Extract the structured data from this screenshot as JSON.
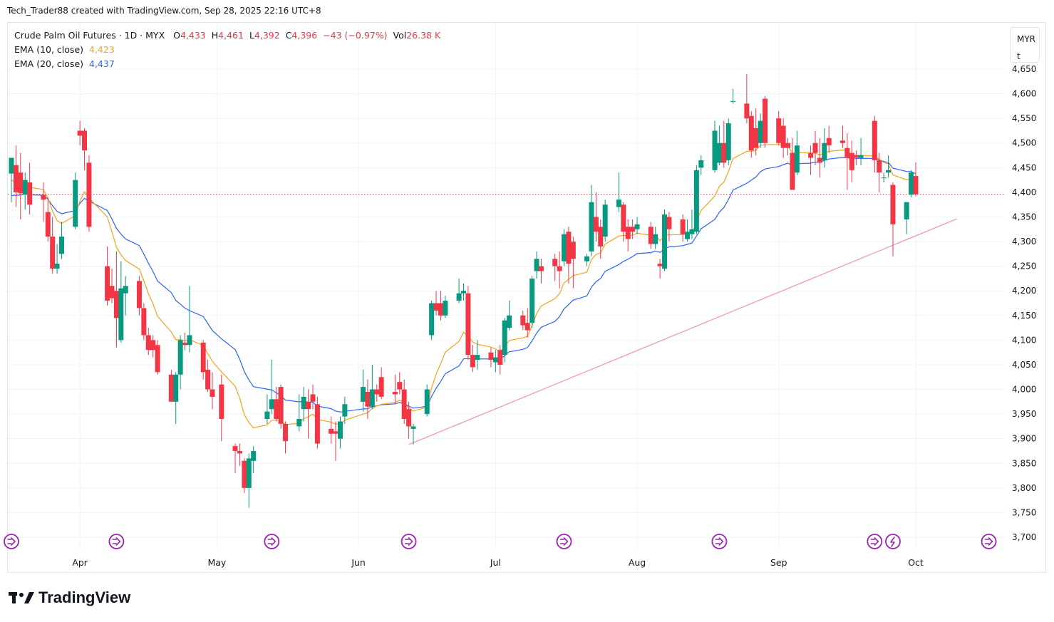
{
  "header": {
    "created_line": "Tech_Trader88 created with TradingView.com, Sep 28, 2025 22:16 UTC+8"
  },
  "legend": {
    "symbol": "Crude Palm Oil Futures · 1D · MYX",
    "open_label": "O",
    "open": "4,433",
    "high_label": "H",
    "high": "4,461",
    "low_label": "L",
    "low": "4,392",
    "close_label": "C",
    "close": "4,396",
    "change": "−43 (−0.97%)",
    "vol_label": "Vol",
    "vol": "26.38 K",
    "ema10_label": "EMA (10, close)",
    "ema10_value": "4,423",
    "ema20_label": "EMA (20, close)",
    "ema20_value": "4,437"
  },
  "currency_button": {
    "label": "MYR",
    "sub": "t"
  },
  "branding": {
    "logo_text": "TradingView"
  },
  "colors": {
    "up": "#089981",
    "down": "#f23645",
    "ema10": "#f7a21b",
    "ema20": "#2962ff",
    "trendline": "#f48fb1",
    "grid": "#f0f3fa",
    "event": "#9c27b0"
  },
  "chart_data": {
    "type": "candlestick",
    "title": "Crude Palm Oil Futures · 1D · MYX",
    "ylim": [
      3700,
      4650
    ],
    "y_ticks": [
      "4,650",
      "4,600",
      "4,550",
      "4,500",
      "4,450",
      "4,400",
      "4,350",
      "4,300",
      "4,250",
      "4,200",
      "4,150",
      "4,100",
      "4,050",
      "4,000",
      "3,950",
      "3,900",
      "3,850",
      "3,800",
      "3,750",
      "3,700"
    ],
    "x_ticks": [
      "Apr",
      "May",
      "Jun",
      "Jul",
      "Aug",
      "Sep",
      "Oct"
    ],
    "last_price_line": 4396,
    "trendline": {
      "from": [
        "2025-06-12",
        3888
      ],
      "to": [
        "2025-10-10",
        4346
      ]
    },
    "candles": [
      {
        "d": "2025-03-17",
        "o": 4438,
        "h": 4465,
        "l": 4380,
        "c": 4470
      },
      {
        "d": "2025-03-18",
        "o": 4455,
        "h": 4495,
        "l": 4370,
        "c": 4400
      },
      {
        "d": "2025-03-19",
        "o": 4440,
        "h": 4480,
        "l": 4345,
        "c": 4398
      },
      {
        "d": "2025-03-20",
        "o": 4395,
        "h": 4440,
        "l": 4365,
        "c": 4425
      },
      {
        "d": "2025-03-21",
        "o": 4420,
        "h": 4460,
        "l": 4355,
        "c": 4375
      },
      {
        "d": "2025-03-24",
        "o": 4395,
        "h": 4420,
        "l": 4340,
        "c": 4385
      },
      {
        "d": "2025-03-25",
        "o": 4360,
        "h": 4390,
        "l": 4300,
        "c": 4310
      },
      {
        "d": "2025-03-26",
        "o": 4310,
        "h": 4350,
        "l": 4235,
        "c": 4245
      },
      {
        "d": "2025-03-27",
        "o": 4245,
        "h": 4295,
        "l": 4235,
        "c": 4255
      },
      {
        "d": "2025-03-28",
        "o": 4275,
        "h": 4340,
        "l": 4265,
        "c": 4310
      },
      {
        "d": "2025-03-31",
        "o": 4330,
        "h": 4440,
        "l": 4325,
        "c": 4425
      },
      {
        "d": "2025-04-01",
        "o": 4525,
        "h": 4545,
        "l": 4495,
        "c": 4515
      },
      {
        "d": "2025-04-02",
        "o": 4525,
        "h": 4530,
        "l": 4445,
        "c": 4485
      },
      {
        "d": "2025-04-03",
        "o": 4460,
        "h": 4475,
        "l": 4320,
        "c": 4330
      },
      {
        "d": "2025-04-07",
        "o": 4250,
        "h": 4290,
        "l": 4170,
        "c": 4180
      },
      {
        "d": "2025-04-08",
        "o": 4210,
        "h": 4245,
        "l": 4175,
        "c": 4185
      },
      {
        "d": "2025-04-09",
        "o": 4200,
        "h": 4280,
        "l": 4085,
        "c": 4145
      },
      {
        "d": "2025-04-10",
        "o": 4100,
        "h": 4260,
        "l": 4095,
        "c": 4205
      },
      {
        "d": "2025-04-11",
        "o": 4195,
        "h": 4230,
        "l": 4150,
        "c": 4210
      },
      {
        "d": "2025-04-14",
        "o": 4220,
        "h": 4230,
        "l": 4150,
        "c": 4165
      },
      {
        "d": "2025-04-15",
        "o": 4165,
        "h": 4175,
        "l": 4100,
        "c": 4110
      },
      {
        "d": "2025-04-16",
        "o": 4110,
        "h": 4125,
        "l": 4070,
        "c": 4080
      },
      {
        "d": "2025-04-17",
        "o": 4100,
        "h": 4110,
        "l": 4065,
        "c": 4080
      },
      {
        "d": "2025-04-18",
        "o": 4090,
        "h": 4100,
        "l": 4030,
        "c": 4035
      },
      {
        "d": "2025-04-21",
        "o": 4030,
        "h": 4040,
        "l": 3975,
        "c": 3975
      },
      {
        "d": "2025-04-22",
        "o": 3975,
        "h": 4035,
        "l": 3930,
        "c": 4030
      },
      {
        "d": "2025-04-23",
        "o": 4030,
        "h": 4110,
        "l": 4000,
        "c": 4100
      },
      {
        "d": "2025-04-24",
        "o": 4095,
        "h": 4115,
        "l": 4080,
        "c": 4090
      },
      {
        "d": "2025-04-25",
        "o": 4090,
        "h": 4210,
        "l": 4075,
        "c": 4110
      },
      {
        "d": "2025-04-28",
        "o": 4095,
        "h": 4100,
        "l": 4020,
        "c": 4035
      },
      {
        "d": "2025-04-29",
        "o": 4040,
        "h": 4060,
        "l": 3995,
        "c": 4000
      },
      {
        "d": "2025-04-30",
        "o": 4000,
        "h": 4035,
        "l": 3960,
        "c": 3985
      },
      {
        "d": "2025-05-02",
        "o": 4010,
        "h": 4030,
        "l": 3895,
        "c": 3940
      },
      {
        "d": "2025-05-05",
        "o": 3885,
        "h": 3890,
        "l": 3830,
        "c": 3875
      },
      {
        "d": "2025-05-06",
        "o": 3875,
        "h": 3890,
        "l": 3845,
        "c": 3870
      },
      {
        "d": "2025-05-07",
        "o": 3855,
        "h": 3860,
        "l": 3790,
        "c": 3800
      },
      {
        "d": "2025-05-08",
        "o": 3800,
        "h": 3870,
        "l": 3760,
        "c": 3860
      },
      {
        "d": "2025-05-09",
        "o": 3855,
        "h": 3885,
        "l": 3830,
        "c": 3875
      },
      {
        "d": "2025-05-12",
        "o": 3940,
        "h": 3990,
        "l": 3930,
        "c": 3955
      },
      {
        "d": "2025-05-13",
        "o": 3960,
        "h": 4060,
        "l": 3950,
        "c": 3980
      },
      {
        "d": "2025-05-14",
        "o": 3980,
        "h": 4005,
        "l": 3935,
        "c": 3940
      },
      {
        "d": "2025-05-15",
        "o": 4005,
        "h": 4010,
        "l": 3920,
        "c": 3930
      },
      {
        "d": "2025-05-16",
        "o": 3930,
        "h": 3935,
        "l": 3870,
        "c": 3895
      },
      {
        "d": "2025-05-19",
        "o": 3925,
        "h": 3990,
        "l": 3915,
        "c": 3940
      },
      {
        "d": "2025-05-20",
        "o": 3960,
        "h": 4005,
        "l": 3935,
        "c": 3985
      },
      {
        "d": "2025-05-21",
        "o": 3975,
        "h": 4000,
        "l": 3900,
        "c": 3960
      },
      {
        "d": "2025-05-22",
        "o": 3990,
        "h": 4010,
        "l": 3960,
        "c": 3975
      },
      {
        "d": "2025-05-23",
        "o": 3970,
        "h": 3985,
        "l": 3880,
        "c": 3890
      },
      {
        "d": "2025-05-26",
        "o": 3920,
        "h": 3945,
        "l": 3890,
        "c": 3910
      },
      {
        "d": "2025-05-27",
        "o": 3915,
        "h": 3935,
        "l": 3855,
        "c": 3910
      },
      {
        "d": "2025-05-28",
        "o": 3900,
        "h": 3945,
        "l": 3880,
        "c": 3935
      },
      {
        "d": "2025-05-29",
        "o": 3945,
        "h": 3985,
        "l": 3930,
        "c": 3970
      },
      {
        "d": "2025-06-02",
        "o": 3975,
        "h": 4040,
        "l": 3955,
        "c": 4005
      },
      {
        "d": "2025-06-03",
        "o": 3995,
        "h": 4020,
        "l": 3940,
        "c": 3965
      },
      {
        "d": "2025-06-04",
        "o": 3965,
        "h": 4050,
        "l": 3960,
        "c": 4000
      },
      {
        "d": "2025-06-05",
        "o": 4000,
        "h": 4010,
        "l": 3975,
        "c": 3990
      },
      {
        "d": "2025-06-06",
        "o": 4025,
        "h": 4045,
        "l": 3980,
        "c": 3985
      },
      {
        "d": "2025-06-09",
        "o": 3995,
        "h": 4030,
        "l": 3970,
        "c": 3990
      },
      {
        "d": "2025-06-10",
        "o": 4015,
        "h": 4035,
        "l": 3990,
        "c": 4000
      },
      {
        "d": "2025-06-11",
        "o": 4000,
        "h": 4020,
        "l": 3930,
        "c": 3940
      },
      {
        "d": "2025-06-12",
        "o": 3960,
        "h": 3975,
        "l": 3900,
        "c": 3925
      },
      {
        "d": "2025-06-13",
        "o": 3920,
        "h": 3930,
        "l": 3888,
        "c": 3925
      },
      {
        "d": "2025-06-16",
        "o": 3950,
        "h": 4010,
        "l": 3945,
        "c": 4000
      },
      {
        "d": "2025-06-17",
        "o": 4110,
        "h": 4180,
        "l": 4100,
        "c": 4175
      },
      {
        "d": "2025-06-18",
        "o": 4175,
        "h": 4200,
        "l": 4150,
        "c": 4160
      },
      {
        "d": "2025-06-19",
        "o": 4175,
        "h": 4200,
        "l": 4140,
        "c": 4150
      },
      {
        "d": "2025-06-20",
        "o": 4150,
        "h": 4190,
        "l": 4145,
        "c": 4180
      },
      {
        "d": "2025-06-23",
        "o": 4180,
        "h": 4225,
        "l": 4175,
        "c": 4195
      },
      {
        "d": "2025-06-24",
        "o": 4195,
        "h": 4215,
        "l": 4180,
        "c": 4200
      },
      {
        "d": "2025-06-25",
        "o": 4195,
        "h": 4210,
        "l": 4060,
        "c": 4070
      },
      {
        "d": "2025-06-26",
        "o": 4070,
        "h": 4090,
        "l": 4035,
        "c": 4045
      },
      {
        "d": "2025-06-27",
        "o": 4060,
        "h": 4100,
        "l": 4040,
        "c": 4070
      },
      {
        "d": "2025-06-30",
        "o": 4075,
        "h": 4085,
        "l": 4045,
        "c": 4060
      },
      {
        "d": "2025-07-01",
        "o": 4055,
        "h": 4080,
        "l": 4035,
        "c": 4065
      },
      {
        "d": "2025-07-02",
        "o": 4080,
        "h": 4090,
        "l": 4030,
        "c": 4050
      },
      {
        "d": "2025-07-03",
        "o": 4070,
        "h": 4145,
        "l": 4055,
        "c": 4140
      },
      {
        "d": "2025-07-04",
        "o": 4125,
        "h": 4180,
        "l": 4120,
        "c": 4150
      },
      {
        "d": "2025-07-07",
        "o": 4150,
        "h": 4160,
        "l": 4120,
        "c": 4130
      },
      {
        "d": "2025-07-08",
        "o": 4135,
        "h": 4165,
        "l": 4105,
        "c": 4120
      },
      {
        "d": "2025-07-09",
        "o": 4135,
        "h": 4230,
        "l": 4125,
        "c": 4225
      },
      {
        "d": "2025-07-10",
        "o": 4240,
        "h": 4280,
        "l": 4225,
        "c": 4265
      },
      {
        "d": "2025-07-11",
        "o": 4250,
        "h": 4265,
        "l": 4215,
        "c": 4240
      },
      {
        "d": "2025-07-14",
        "o": 4265,
        "h": 4275,
        "l": 4220,
        "c": 4250
      },
      {
        "d": "2025-07-15",
        "o": 4250,
        "h": 4280,
        "l": 4205,
        "c": 4240
      },
      {
        "d": "2025-07-16",
        "o": 4260,
        "h": 4325,
        "l": 4250,
        "c": 4315
      },
      {
        "d": "2025-07-17",
        "o": 4320,
        "h": 4330,
        "l": 4215,
        "c": 4255
      },
      {
        "d": "2025-07-18",
        "o": 4300,
        "h": 4310,
        "l": 4205,
        "c": 4265
      },
      {
        "d": "2025-07-21",
        "o": 4260,
        "h": 4275,
        "l": 4250,
        "c": 4270
      },
      {
        "d": "2025-07-22",
        "o": 4280,
        "h": 4415,
        "l": 4270,
        "c": 4380
      },
      {
        "d": "2025-07-23",
        "o": 4350,
        "h": 4400,
        "l": 4300,
        "c": 4320
      },
      {
        "d": "2025-07-24",
        "o": 4330,
        "h": 4345,
        "l": 4265,
        "c": 4290
      },
      {
        "d": "2025-07-25",
        "o": 4310,
        "h": 4385,
        "l": 4300,
        "c": 4375
      },
      {
        "d": "2025-07-28",
        "o": 4370,
        "h": 4440,
        "l": 4360,
        "c": 4385
      },
      {
        "d": "2025-07-29",
        "o": 4375,
        "h": 4380,
        "l": 4300,
        "c": 4320
      },
      {
        "d": "2025-07-30",
        "o": 4330,
        "h": 4345,
        "l": 4280,
        "c": 4305
      },
      {
        "d": "2025-07-31",
        "o": 4330,
        "h": 4345,
        "l": 4305,
        "c": 4320
      },
      {
        "d": "2025-08-01",
        "o": 4325,
        "h": 4350,
        "l": 4315,
        "c": 4335
      },
      {
        "d": "2025-08-04",
        "o": 4330,
        "h": 4340,
        "l": 4285,
        "c": 4295
      },
      {
        "d": "2025-08-05",
        "o": 4295,
        "h": 4330,
        "l": 4285,
        "c": 4315
      },
      {
        "d": "2025-08-06",
        "o": 4255,
        "h": 4265,
        "l": 4225,
        "c": 4250
      },
      {
        "d": "2025-08-07",
        "o": 4245,
        "h": 4365,
        "l": 4240,
        "c": 4355
      },
      {
        "d": "2025-08-08",
        "o": 4350,
        "h": 4360,
        "l": 4300,
        "c": 4325
      },
      {
        "d": "2025-08-11",
        "o": 4345,
        "h": 4355,
        "l": 4300,
        "c": 4315
      },
      {
        "d": "2025-08-12",
        "o": 4305,
        "h": 4345,
        "l": 4300,
        "c": 4320
      },
      {
        "d": "2025-08-13",
        "o": 4315,
        "h": 4365,
        "l": 4305,
        "c": 4325
      },
      {
        "d": "2025-08-14",
        "o": 4320,
        "h": 4455,
        "l": 4315,
        "c": 4445
      },
      {
        "d": "2025-08-15",
        "o": 4450,
        "h": 4475,
        "l": 4435,
        "c": 4465
      },
      {
        "d": "2025-08-18",
        "o": 4445,
        "h": 4545,
        "l": 4440,
        "c": 4525
      },
      {
        "d": "2025-08-19",
        "o": 4460,
        "h": 4535,
        "l": 4455,
        "c": 4500
      },
      {
        "d": "2025-08-20",
        "o": 4500,
        "h": 4545,
        "l": 4450,
        "c": 4460
      },
      {
        "d": "2025-08-21",
        "o": 4465,
        "h": 4550,
        "l": 4455,
        "c": 4540
      },
      {
        "d": "2025-08-22",
        "o": 4585,
        "h": 4610,
        "l": 4580,
        "c": 4585
      },
      {
        "d": "2025-08-25",
        "o": 4580,
        "h": 4640,
        "l": 4540,
        "c": 4550
      },
      {
        "d": "2025-08-26",
        "o": 4555,
        "h": 4565,
        "l": 4470,
        "c": 4485
      },
      {
        "d": "2025-08-27",
        "o": 4530,
        "h": 4570,
        "l": 4475,
        "c": 4490
      },
      {
        "d": "2025-08-28",
        "o": 4500,
        "h": 4560,
        "l": 4490,
        "c": 4545
      },
      {
        "d": "2025-08-29",
        "o": 4590,
        "h": 4595,
        "l": 4490,
        "c": 4500
      },
      {
        "d": "2025-09-01",
        "o": 4550,
        "h": 4565,
        "l": 4495,
        "c": 4500
      },
      {
        "d": "2025-09-02",
        "o": 4535,
        "h": 4550,
        "l": 4470,
        "c": 4490
      },
      {
        "d": "2025-09-03",
        "o": 4500,
        "h": 4510,
        "l": 4475,
        "c": 4490
      },
      {
        "d": "2025-09-04",
        "o": 4480,
        "h": 4510,
        "l": 4405,
        "c": 4405
      },
      {
        "d": "2025-09-05",
        "o": 4440,
        "h": 4525,
        "l": 4435,
        "c": 4495
      },
      {
        "d": "2025-09-08",
        "o": 4480,
        "h": 4495,
        "l": 4435,
        "c": 4470
      },
      {
        "d": "2025-09-09",
        "o": 4500,
        "h": 4525,
        "l": 4455,
        "c": 4480
      },
      {
        "d": "2025-09-10",
        "o": 4470,
        "h": 4510,
        "l": 4430,
        "c": 4460
      },
      {
        "d": "2025-09-11",
        "o": 4465,
        "h": 4530,
        "l": 4450,
        "c": 4500
      },
      {
        "d": "2025-09-12",
        "o": 4510,
        "h": 4535,
        "l": 4480,
        "c": 4495
      },
      {
        "d": "2025-09-15",
        "o": 4505,
        "h": 4535,
        "l": 4490,
        "c": 4500
      },
      {
        "d": "2025-09-16",
        "o": 4490,
        "h": 4520,
        "l": 4405,
        "c": 4470
      },
      {
        "d": "2025-09-17",
        "o": 4480,
        "h": 4505,
        "l": 4420,
        "c": 4445
      },
      {
        "d": "2025-09-18",
        "o": 4475,
        "h": 4485,
        "l": 4455,
        "c": 4470
      },
      {
        "d": "2025-09-19",
        "o": 4470,
        "h": 4510,
        "l": 4455,
        "c": 4475
      },
      {
        "d": "2025-09-22",
        "o": 4545,
        "h": 4555,
        "l": 4440,
        "c": 4465
      },
      {
        "d": "2025-09-23",
        "o": 4465,
        "h": 4480,
        "l": 4400,
        "c": 4440
      },
      {
        "d": "2025-09-24",
        "o": 4430,
        "h": 4440,
        "l": 4420,
        "c": 4430
      },
      {
        "d": "2025-09-25",
        "o": 4440,
        "h": 4475,
        "l": 4430,
        "c": 4445
      },
      {
        "d": "2025-09-26",
        "o": 4415,
        "h": 4420,
        "l": 4270,
        "c": 4335
      },
      {
        "d": "2025-09-29",
        "o": 4345,
        "h": 4380,
        "l": 4315,
        "c": 4380
      },
      {
        "d": "2025-09-30",
        "o": 4395,
        "h": 4445,
        "l": 4390,
        "c": 4440
      },
      {
        "d": "2025-10-01",
        "o": 4433,
        "h": 4461,
        "l": 4392,
        "c": 4396
      }
    ]
  }
}
